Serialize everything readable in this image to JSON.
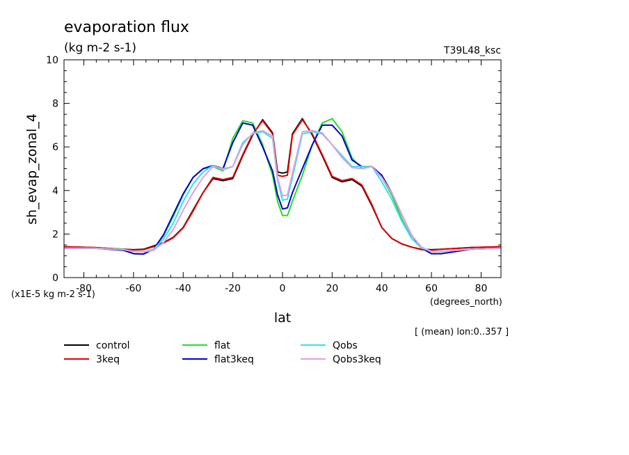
{
  "chart_data": {
    "type": "line",
    "title": "evaporation flux",
    "units": "(kg m-2 s-1)",
    "experiment": "T39L48_ksc",
    "xlabel": "lat",
    "x_units": "(degrees_north)",
    "ylabel": "sh_evap_zonal_4",
    "y_scale_note": "(x1E-5 kg m-2 s-1)",
    "averaging_note": "[ (mean) lon:0..357 ]",
    "xlim": [
      -88,
      88
    ],
    "ylim": [
      0,
      10
    ],
    "x_ticks": [
      -80,
      -60,
      -40,
      -20,
      0,
      20,
      40,
      60,
      80
    ],
    "x_tick_labels": [
      "-80",
      "-60",
      "-40",
      "-20",
      "0",
      "20",
      "40",
      "60",
      "80"
    ],
    "y_ticks": [
      0,
      2,
      4,
      6,
      8,
      10
    ],
    "y_tick_labels": [
      "0",
      "2",
      "4",
      "6",
      "8",
      "10"
    ],
    "x": [
      -88,
      -76,
      -64,
      -60,
      -56,
      -52,
      -48,
      -44,
      -40,
      -36,
      -32,
      -28,
      -24,
      -20,
      -16,
      -12,
      -8,
      -4,
      -2,
      0,
      2,
      4,
      8,
      12,
      16,
      20,
      24,
      28,
      32,
      36,
      40,
      44,
      48,
      52,
      56,
      60,
      64,
      76,
      88
    ],
    "series": [
      {
        "name": "control",
        "color": "#000000",
        "values": [
          1.42,
          1.38,
          1.3,
          1.28,
          1.3,
          1.45,
          1.6,
          1.85,
          2.3,
          3.1,
          3.9,
          4.55,
          4.45,
          4.55,
          5.6,
          6.55,
          7.25,
          6.65,
          4.85,
          4.8,
          4.85,
          6.6,
          7.3,
          6.55,
          5.6,
          4.6,
          4.4,
          4.5,
          4.2,
          3.3,
          2.3,
          1.8,
          1.55,
          1.4,
          1.3,
          1.28,
          1.3,
          1.38,
          1.42
        ]
      },
      {
        "name": "3keq",
        "color": "#e00000",
        "values": [
          1.42,
          1.38,
          1.3,
          1.27,
          1.28,
          1.42,
          1.58,
          1.83,
          2.28,
          3.05,
          3.9,
          4.6,
          4.5,
          4.6,
          5.65,
          6.6,
          7.2,
          6.6,
          4.7,
          4.65,
          4.7,
          6.55,
          7.25,
          6.6,
          5.65,
          4.65,
          4.45,
          4.55,
          4.25,
          3.35,
          2.3,
          1.8,
          1.55,
          1.4,
          1.28,
          1.26,
          1.3,
          1.38,
          1.42
        ]
      },
      {
        "name": "flat",
        "color": "#22dd22",
        "values": [
          1.35,
          1.35,
          1.3,
          1.1,
          1.08,
          1.3,
          1.9,
          2.8,
          3.8,
          4.6,
          5.0,
          5.1,
          4.9,
          6.4,
          7.2,
          7.1,
          6.1,
          4.7,
          3.5,
          2.85,
          2.85,
          3.5,
          4.7,
          6.1,
          7.1,
          7.3,
          6.7,
          5.5,
          5.0,
          5.1,
          4.6,
          3.8,
          2.7,
          1.8,
          1.35,
          1.1,
          1.1,
          1.3,
          1.35
        ]
      },
      {
        "name": "flat3keq",
        "color": "#0000cc",
        "values": [
          1.35,
          1.35,
          1.25,
          1.1,
          1.08,
          1.3,
          1.95,
          2.9,
          3.85,
          4.6,
          5.0,
          5.15,
          5.0,
          6.2,
          7.1,
          7.0,
          6.0,
          4.9,
          3.8,
          3.15,
          3.2,
          3.9,
          5.0,
          6.1,
          7.0,
          7.0,
          6.5,
          5.4,
          5.1,
          5.1,
          4.7,
          3.9,
          2.9,
          1.95,
          1.35,
          1.1,
          1.1,
          1.3,
          1.35
        ]
      },
      {
        "name": "Qobs",
        "color": "#33e0f0",
        "values": [
          1.35,
          1.35,
          1.28,
          1.2,
          1.18,
          1.3,
          1.75,
          2.5,
          3.5,
          4.3,
          4.85,
          5.15,
          4.95,
          5.1,
          6.2,
          6.6,
          6.7,
          6.4,
          4.5,
          3.55,
          3.6,
          4.6,
          6.6,
          6.7,
          6.6,
          6.1,
          5.6,
          5.1,
          5.1,
          5.1,
          4.4,
          3.6,
          2.6,
          1.8,
          1.35,
          1.2,
          1.2,
          1.3,
          1.35
        ]
      },
      {
        "name": "Qobs3keq",
        "color": "#e0a0e0",
        "values": [
          1.35,
          1.35,
          1.28,
          1.2,
          1.18,
          1.25,
          1.6,
          2.2,
          3.1,
          3.9,
          4.6,
          5.1,
          5.0,
          5.1,
          6.1,
          6.65,
          6.75,
          6.5,
          4.6,
          3.75,
          3.8,
          4.8,
          6.7,
          6.75,
          6.65,
          6.1,
          5.5,
          5.05,
          5.0,
          5.1,
          4.6,
          3.9,
          2.9,
          1.95,
          1.4,
          1.2,
          1.2,
          1.3,
          1.35
        ]
      }
    ],
    "legend_placement": "bottom",
    "grid": false
  }
}
